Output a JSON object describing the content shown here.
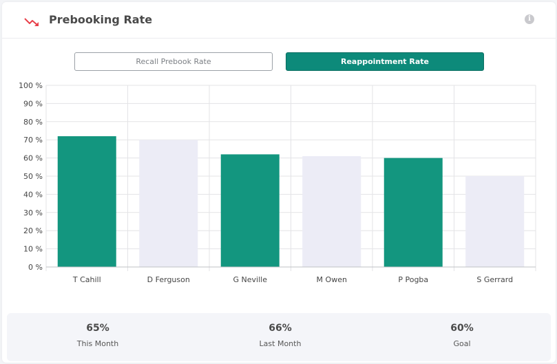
{
  "header": {
    "title": "Prebooking Rate",
    "info_icon": "i"
  },
  "tabs": [
    {
      "label": "Recall Prebook Rate",
      "active": false
    },
    {
      "label": "Reappointment Rate",
      "active": true
    }
  ],
  "chart_data": {
    "type": "bar",
    "categories": [
      "T Cahill",
      "D Ferguson",
      "G Neville",
      "M Owen",
      "P Pogba",
      "S Gerrard"
    ],
    "values": [
      72,
      70,
      62,
      61,
      60,
      50
    ],
    "bar_colors": [
      "#13967f",
      "#ececf6",
      "#13967f",
      "#ececf6",
      "#13967f",
      "#ececf6"
    ],
    "ylim": [
      0,
      100
    ],
    "yticks": [
      "0 %",
      "10 %",
      "20 %",
      "30 %",
      "40 %",
      "50 %",
      "60 %",
      "70 %",
      "80 %",
      "90 %",
      "100 %"
    ],
    "grid": true
  },
  "summary": [
    {
      "value": "65%",
      "label": "This Month"
    },
    {
      "value": "66%",
      "label": "Last Month"
    },
    {
      "value": "60%",
      "label": "Goal"
    }
  ],
  "colors": {
    "accent": "#0d8a7a",
    "bar_primary": "#13967f",
    "bar_secondary": "#ececf6",
    "trend_icon": "#e8404a"
  }
}
